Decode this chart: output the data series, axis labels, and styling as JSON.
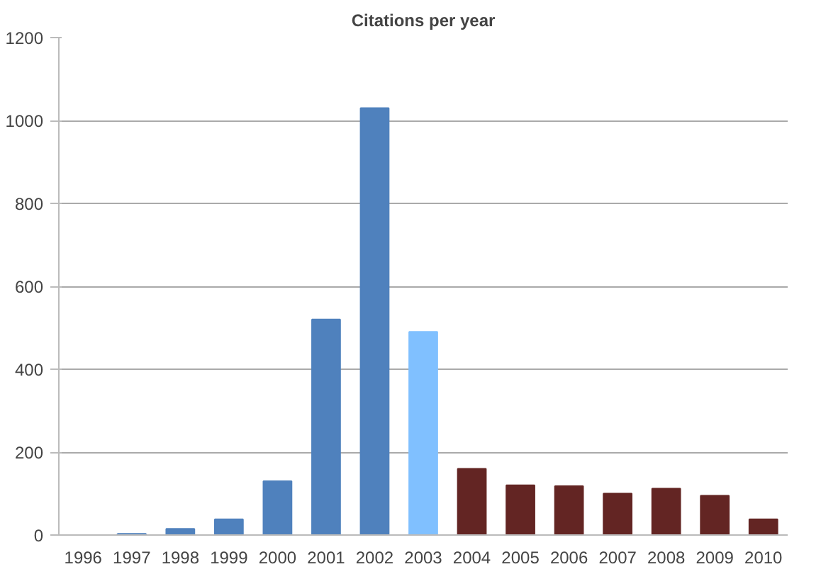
{
  "chart_data": {
    "type": "bar",
    "title": "Citations per year",
    "categories": [
      "1996",
      "1997",
      "1998",
      "1999",
      "2000",
      "2001",
      "2002",
      "2003",
      "2004",
      "2005",
      "2006",
      "2007",
      "2008",
      "2009",
      "2010"
    ],
    "values": [
      0,
      3,
      15,
      38,
      130,
      520,
      1030,
      490,
      160,
      120,
      118,
      100,
      112,
      95,
      38
    ],
    "colors": [
      "#4f81bd",
      "#4f81bd",
      "#4f81bd",
      "#4f81bd",
      "#4f81bd",
      "#4f81bd",
      "#4f81bd",
      "#80c0ff",
      "#632523",
      "#632523",
      "#632523",
      "#632523",
      "#632523",
      "#632523",
      "#632523"
    ],
    "ylim": [
      0,
      1200
    ],
    "yticks": [
      0,
      200,
      400,
      600,
      800,
      1000,
      1200
    ],
    "grid": "y"
  }
}
